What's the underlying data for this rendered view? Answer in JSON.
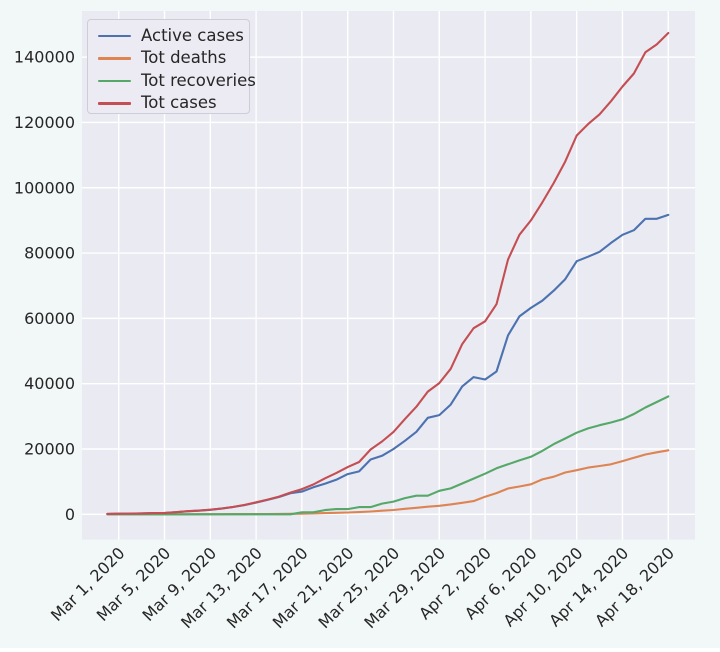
{
  "figure": {
    "background_color": "#f2f8f7",
    "axes_background_color": "#eaeaf2",
    "grid_color": "#ffffff",
    "text_color": "#262626"
  },
  "chart_data": {
    "type": "line",
    "title": "",
    "xlabel": "",
    "ylabel": "",
    "grid": true,
    "legend_position": "upper left",
    "ylim": [
      -7700,
      154000
    ],
    "y_ticks": [
      0,
      20000,
      40000,
      60000,
      80000,
      100000,
      120000,
      140000
    ],
    "x_dates": [
      "Feb 29",
      "Mar 1",
      "Mar 2",
      "Mar 3",
      "Mar 4",
      "Mar 5",
      "Mar 6",
      "Mar 7",
      "Mar 8",
      "Mar 9",
      "Mar 10",
      "Mar 11",
      "Mar 12",
      "Mar 13",
      "Mar 14",
      "Mar 15",
      "Mar 16",
      "Mar 17",
      "Mar 18",
      "Mar 19",
      "Mar 20",
      "Mar 21",
      "Mar 22",
      "Mar 23",
      "Mar 24",
      "Mar 25",
      "Mar 26",
      "Mar 27",
      "Mar 28",
      "Mar 29",
      "Mar 30",
      "Mar 31",
      "Apr 1",
      "Apr 2",
      "Apr 3",
      "Apr 4",
      "Apr 5",
      "Apr 6",
      "Apr 7",
      "Apr 8",
      "Apr 9",
      "Apr 10",
      "Apr 11",
      "Apr 12",
      "Apr 13",
      "Apr 14",
      "Apr 15",
      "Apr 16",
      "Apr 17",
      "Apr 18"
    ],
    "x_tick_indices": [
      1,
      5,
      9,
      13,
      17,
      21,
      25,
      29,
      33,
      37,
      41,
      45,
      49
    ],
    "x_tick_labels": [
      "Mar 1, 2020",
      "Mar 5, 2020",
      "Mar 9, 2020",
      "Mar 13, 2020",
      "Mar 17, 2020",
      "Mar 21, 2020",
      "Mar 25, 2020",
      "Mar 29, 2020",
      "Apr 2, 2020",
      "Apr 6, 2020",
      "Apr 10, 2020",
      "Apr 14, 2020",
      "Apr 18, 2020"
    ],
    "series": [
      {
        "name": "Active cases",
        "color": "#4c72b0",
        "values": [
          116,
          175,
          189,
          269,
          359,
          404,
          632,
          926,
          1095,
          1381,
          1739,
          2221,
          2803,
          3570,
          4396,
          5284,
          6473,
          6953,
          8268,
          9328,
          10575,
          12310,
          13144,
          16796,
          17923,
          20002,
          22511,
          25269,
          29561,
          30366,
          33599,
          39161,
          42022,
          41290,
          43731,
          54800,
          60600,
          63200,
          65400,
          68500,
          72000,
          77500,
          78900,
          80400,
          83100,
          85600,
          87000,
          90500,
          90500,
          91700
        ]
      },
      {
        "name": "Tot deaths",
        "color": "#dd8452",
        "values": [
          2,
          3,
          3,
          4,
          6,
          7,
          9,
          11,
          19,
          19,
          33,
          48,
          61,
          79,
          91,
          127,
          148,
          175,
          264,
          372,
          450,
          562,
          674,
          860,
          1100,
          1331,
          1696,
          1995,
          2314,
          2606,
          3024,
          3523,
          4032,
          5387,
          6507,
          7900,
          8500,
          9200,
          10700,
          11500,
          12800,
          13500,
          14300,
          14800,
          15300,
          16300,
          17300,
          18300,
          19000,
          19600
        ]
      },
      {
        "name": "Tot recoveries",
        "color": "#55a868",
        "values": [
          12,
          12,
          12,
          12,
          12,
          12,
          12,
          12,
          12,
          12,
          12,
          12,
          12,
          12,
          12,
          12,
          12,
          602,
          602,
          1295,
          1587,
          1587,
          2200,
          2200,
          3281,
          3900,
          4948,
          5700,
          5700,
          7202,
          7927,
          9444,
          10935,
          12428,
          14100,
          15300,
          16500,
          17600,
          19400,
          21500,
          23200,
          25000,
          26300,
          27300,
          28100,
          29100,
          30700,
          32700,
          34400,
          36100
        ]
      },
      {
        "name": "Tot cases",
        "color": "#c44e52",
        "values": [
          130,
          190,
          204,
          285,
          377,
          423,
          653,
          949,
          1126,
          1412,
          1784,
          2281,
          2876,
          3661,
          4499,
          5423,
          6633,
          7730,
          9134,
          10995,
          12612,
          14459,
          16018,
          19856,
          22304,
          25233,
          29155,
          32964,
          37575,
          40174,
          44550,
          52128,
          56989,
          59105,
          64338,
          78000,
          85600,
          90000,
          95500,
          101500,
          108000,
          116000,
          119500,
          122500,
          126500,
          131000,
          135000,
          141500,
          143900,
          147400
        ]
      }
    ]
  }
}
